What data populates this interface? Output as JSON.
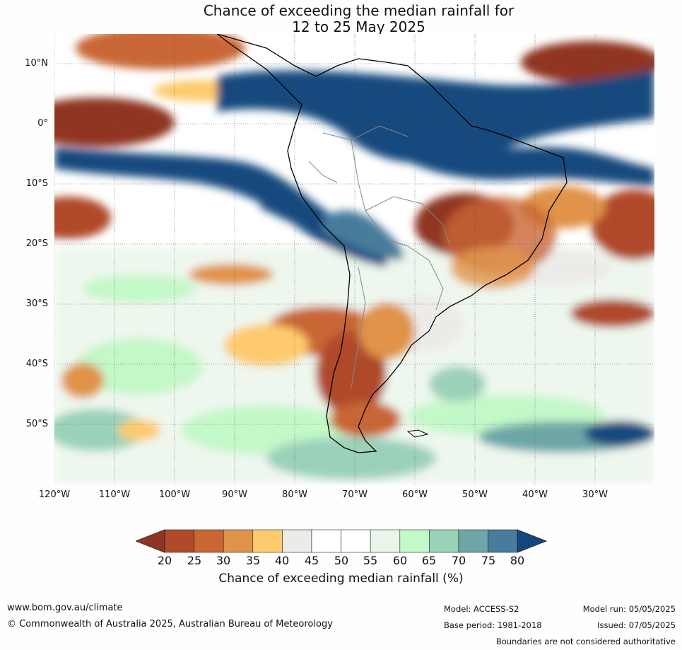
{
  "title": {
    "line1": "Chance of exceeding the median rainfall for",
    "line2": "12 to 25 May 2025"
  },
  "map": {
    "lat_labels": [
      "10°N",
      "0°",
      "10°S",
      "20°S",
      "30°S",
      "40°S",
      "50°S"
    ],
    "lon_labels": [
      "120°W",
      "110°W",
      "100°W",
      "90°W",
      "80°W",
      "70°W",
      "60°W",
      "50°W",
      "40°W",
      "30°W"
    ]
  },
  "colorbar": {
    "title": "Chance of exceeding median rainfall (%)",
    "ticks": [
      "20",
      "25",
      "30",
      "35",
      "40",
      "45",
      "50",
      "55",
      "60",
      "65",
      "70",
      "75",
      "80"
    ],
    "colors": [
      "#8f3522",
      "#b04a2a",
      "#c96634",
      "#e0934a",
      "#fdcb6d",
      "#ecebe8",
      "#ffffff",
      "#ffffff",
      "#e9f5e9",
      "#c3f8c8",
      "#9bd1b9",
      "#6ea6a8",
      "#477c9c",
      "#12487e"
    ]
  },
  "footer": {
    "website": "www.bom.gov.au/climate",
    "copyright": "© Commonwealth of Australia 2025, Australian Bureau of Meteorology",
    "model": "Model: ACCESS-S2",
    "base_period": "Base period: 1981-2018",
    "model_run": "Model run: 05/05/2025",
    "issued": "Issued: 07/05/2025",
    "disclaimer": "Boundaries are not considered authoritative"
  }
}
